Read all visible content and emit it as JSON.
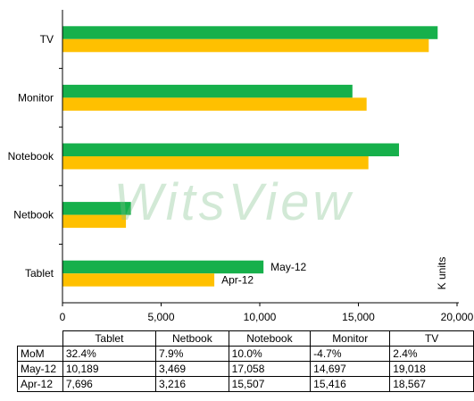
{
  "chart_data": {
    "type": "bar",
    "orientation": "horizontal",
    "categories": [
      "Tablet",
      "Netbook",
      "Notebook",
      "Monitor",
      "TV"
    ],
    "series": [
      {
        "name": "May-12",
        "values": [
          10189,
          3469,
          17058,
          14697,
          19018
        ],
        "color": "#16b04b"
      },
      {
        "name": "Apr-12",
        "values": [
          7696,
          3216,
          15507,
          15416,
          18567
        ],
        "color": "#ffc000"
      }
    ],
    "xlim": [
      0,
      20000
    ],
    "xticks": [
      "0",
      "5,000",
      "10,000",
      "15,000",
      "20,000"
    ],
    "unit_label": "K units",
    "watermark": "WitsView",
    "grid": false,
    "legend": "data labels on Tablet bars"
  },
  "table": {
    "columns": [
      "Tablet",
      "Netbook",
      "Notebook",
      "Monitor",
      "TV"
    ],
    "rows": [
      {
        "label": "MoM",
        "cells": [
          "32.4%",
          "7.9%",
          "10.0%",
          "-4.7%",
          "2.4%"
        ]
      },
      {
        "label": "May-12",
        "cells": [
          "10,189",
          "3,469",
          "17,058",
          "14,697",
          "19,018"
        ]
      },
      {
        "label": "Apr-12",
        "cells": [
          "7,696",
          "3,216",
          "15,507",
          "15,416",
          "18,567"
        ]
      }
    ]
  }
}
